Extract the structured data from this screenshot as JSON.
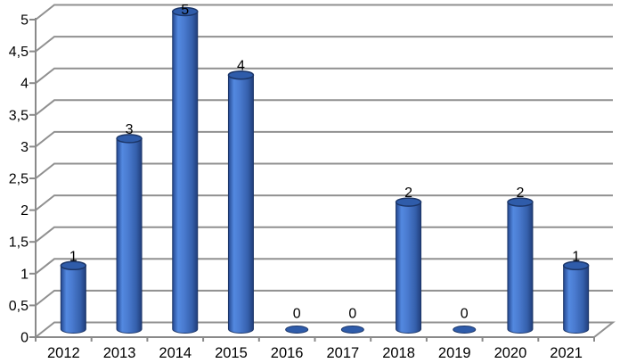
{
  "chart_data": {
    "type": "bar",
    "subtype": "cylinder-3d",
    "title": "",
    "xlabel": "",
    "ylabel": "",
    "categories": [
      "2012",
      "2013",
      "2014",
      "2015",
      "2016",
      "2017",
      "2018",
      "2019",
      "2020",
      "2021"
    ],
    "values": [
      1,
      3,
      5,
      4,
      0,
      0,
      2,
      0,
      2,
      1
    ],
    "data_labels": [
      "1",
      "3",
      "5",
      "4",
      "0",
      "0",
      "2",
      "0",
      "2",
      "1"
    ],
    "ylim": [
      0,
      5
    ],
    "ytick_step": 0.5,
    "ytick_labels": [
      "0",
      "0,5",
      "1",
      "1,5",
      "2",
      "2,5",
      "3",
      "3,5",
      "4",
      "4,5",
      "5"
    ],
    "grid": true,
    "legend_position": "none",
    "colors": {
      "background": "#ffffff",
      "gridline": "#909090",
      "axis": "#8a8a8a",
      "label_text": "#000000",
      "bar_edge_dark": "#24478f",
      "bar_highlight": "#5389e0",
      "bar_mid": "#4a7bd0",
      "bar_shade": "#3560ac",
      "bar_edge_right": "#213e7b",
      "bar_top": "#2f5caa",
      "bar_border": "#1c3668"
    }
  }
}
